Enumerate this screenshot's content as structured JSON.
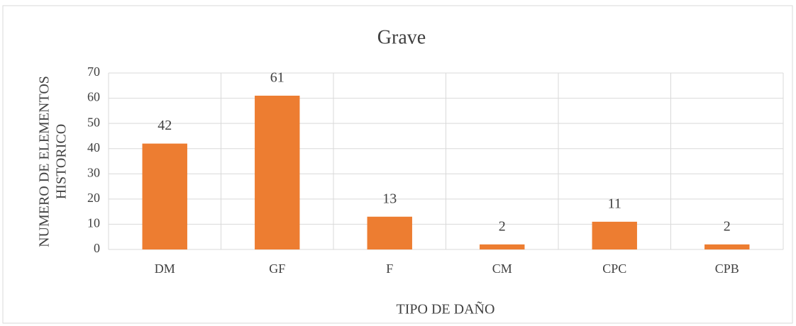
{
  "chart_data": {
    "type": "bar",
    "title": "Grave",
    "y_label": [
      "NUMERO DE ELEMENTOS",
      "HISTORICO"
    ],
    "x_label": "TIPO DE DAÑO",
    "categories": [
      "DM",
      "GF",
      "F",
      "CM",
      "CPC",
      "CPB"
    ],
    "values": [
      42,
      61,
      13,
      2,
      11,
      2
    ],
    "color": "#ed7d31",
    "ylim": [
      0,
      70
    ],
    "yticks": [
      0,
      10,
      20,
      30,
      40,
      50,
      60,
      70
    ],
    "grid": true
  }
}
